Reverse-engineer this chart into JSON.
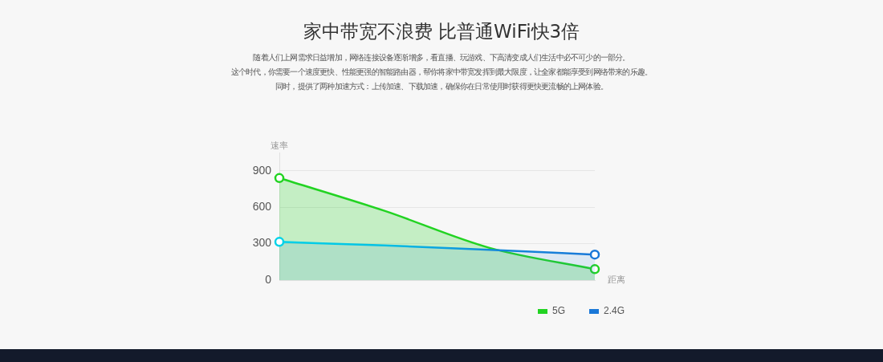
{
  "chart_data": {
    "type": "area",
    "title": "家中带宽不浪费 比普通WiFi快3倍",
    "subtitle": "随着人们上网需求日益增加，网络连接设备逐渐增多，看直播、玩游戏、下高清变成人们生活中必不可少的一部分。",
    "annotations": [
      "这个时代，你需要一个速度更快、性能更强的智能路由器，帮你将家中带宽发挥到最大限度，让全家都能享受到网络带来的乐趣。",
      "同时，提供了两种加速方式：上传加速、下载加速，确保你在日常使用时获得更快更流畅的上网体验。"
    ],
    "xlabel": "距离",
    "ylabel": "速率",
    "categories": [
      null,
      null,
      null,
      null
    ],
    "series": [
      {
        "name": "5G",
        "color": "#22d322",
        "values": [
          840,
          570,
          265,
          90
        ]
      },
      {
        "name": "2.4G",
        "color": "#1a78d8",
        "colors": [
          "#00d2e8",
          "#04c0e4",
          "#128ada",
          "#1a78d8"
        ],
        "values": [
          315,
          285,
          250,
          210
        ]
      }
    ],
    "ylim": [
      0,
      1050
    ],
    "yticks": [
      0,
      300,
      600,
      900
    ],
    "grid": "y",
    "legend": "bottom right",
    "marker": "circle",
    "line_style": "solid"
  }
}
